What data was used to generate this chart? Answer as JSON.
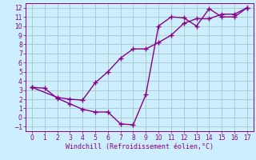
{
  "line1_x": [
    0,
    1,
    2,
    3,
    4,
    5,
    6,
    7,
    8,
    9,
    10,
    11,
    12,
    13,
    14,
    15,
    16,
    17
  ],
  "line1_y": [
    3.3,
    3.2,
    2.1,
    1.5,
    0.9,
    0.6,
    0.6,
    -0.7,
    -0.8,
    2.5,
    10.0,
    11.0,
    10.9,
    10.0,
    11.9,
    11.0,
    11.0,
    12.0
  ],
  "line2_x": [
    0,
    2,
    3,
    4,
    5,
    6,
    7,
    8,
    9,
    10,
    11,
    12,
    13,
    14,
    15,
    16,
    17
  ],
  "line2_y": [
    3.3,
    2.2,
    2.0,
    1.9,
    3.8,
    5.0,
    6.5,
    7.5,
    7.5,
    8.2,
    9.0,
    10.3,
    10.8,
    10.8,
    11.3,
    11.3,
    12.0
  ],
  "line_color": "#880088",
  "bg_color": "#cceeff",
  "grid_color": "#aacccc",
  "xlabel": "Windchill (Refroidissement éolien,°C)",
  "xlim": [
    -0.5,
    17.5
  ],
  "ylim": [
    -1.5,
    12.5
  ],
  "xticks": [
    0,
    1,
    2,
    3,
    4,
    5,
    6,
    7,
    8,
    9,
    10,
    11,
    12,
    13,
    14,
    15,
    16,
    17
  ],
  "yticks": [
    -1,
    0,
    1,
    2,
    3,
    4,
    5,
    6,
    7,
    8,
    9,
    10,
    11,
    12
  ],
  "marker": "+",
  "markersize": 4,
  "linewidth": 1.0,
  "tick_fontsize": 5.5,
  "xlabel_fontsize": 6.0
}
